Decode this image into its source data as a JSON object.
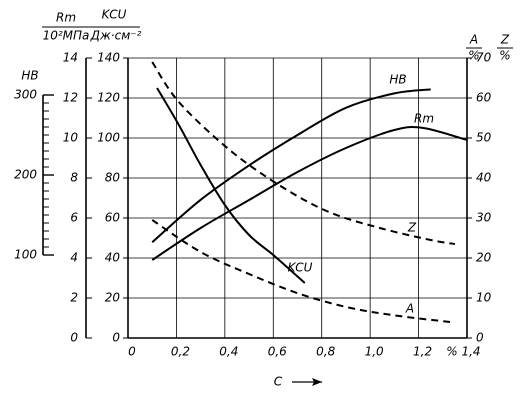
{
  "chart_data": {
    "type": "line",
    "xlabel": "C",
    "xunit": "%",
    "xlim": [
      0,
      1.4
    ],
    "xticks": [
      0,
      {
        "value": 0.2,
        "label": "0,2"
      },
      {
        "value": 0.4,
        "label": "0,4"
      },
      {
        "value": 0.6,
        "label": "0,6"
      },
      {
        "value": 0.8,
        "label": "0,8"
      },
      {
        "value": 1.0,
        "label": "1,0"
      },
      {
        "value": 1.2,
        "label": "1,2"
      },
      {
        "value": 1.4,
        "label": "1,4"
      }
    ],
    "ylabel": {
      "numerator": "KCU",
      "denominator": "Дж·см⁻²"
    },
    "ylim": [
      0,
      140
    ],
    "yticks": [
      0,
      20,
      40,
      60,
      80,
      100,
      120,
      140
    ],
    "y2label": [
      {
        "numerator": "A",
        "denominator": "%"
      },
      {
        "numerator": "Z",
        "denominator": "%"
      }
    ],
    "y2lim": [
      0,
      70
    ],
    "y2ticks": [
      0,
      10,
      20,
      30,
      40,
      50,
      60,
      70
    ],
    "y3label": {
      "numerator": "Rm",
      "denominator": "10²МПа"
    },
    "y3lim": [
      0,
      14
    ],
    "y3ticks": [
      0,
      2,
      4,
      6,
      8,
      10,
      12,
      14
    ],
    "y4label": "HB",
    "y4lim": [
      100,
      300
    ],
    "y4ticks": [
      100,
      200,
      300
    ],
    "y4minor": 10,
    "grid": true,
    "series": [
      {
        "name": "HB",
        "axis": "y4",
        "color": "#000000",
        "dash": false,
        "x": [
          0.1,
          0.3,
          0.5,
          0.7,
          0.9,
          1.1,
          1.25
        ],
        "values": [
          116,
          169,
          212,
          250,
          284,
          302,
          307
        ]
      },
      {
        "name": "Rm",
        "axis": "y3",
        "color": "#000000",
        "dash": false,
        "x": [
          0.1,
          0.3,
          0.5,
          0.7,
          0.9,
          1.1,
          1.22,
          1.4
        ],
        "values": [
          3.9,
          5.5,
          6.9,
          8.3,
          9.5,
          10.4,
          10.5,
          9.9
        ]
      },
      {
        "name": "KCU",
        "axis": "y",
        "color": "#000000",
        "dash": false,
        "x": [
          0.12,
          0.21,
          0.3,
          0.4,
          0.5,
          0.6,
          0.73
        ],
        "values": [
          125,
          106.5,
          86.5,
          66.5,
          51.5,
          41.5,
          27.5
        ]
      },
      {
        "name": "Z",
        "axis": "y2",
        "color": "#000000",
        "dash": true,
        "x": [
          0.1,
          0.21,
          0.42,
          0.63,
          0.83,
          1.04,
          1.25,
          1.35
        ],
        "values": [
          69,
          59,
          47,
          38,
          31.5,
          27.5,
          24.5,
          23.5
        ]
      },
      {
        "name": "A",
        "axis": "y2",
        "color": "#000000",
        "dash": true,
        "x": [
          0.1,
          0.3,
          0.5,
          0.71,
          0.92,
          1.12,
          1.33
        ],
        "values": [
          29.5,
          21.5,
          16,
          11,
          7.5,
          5.5,
          4
        ]
      }
    ]
  }
}
